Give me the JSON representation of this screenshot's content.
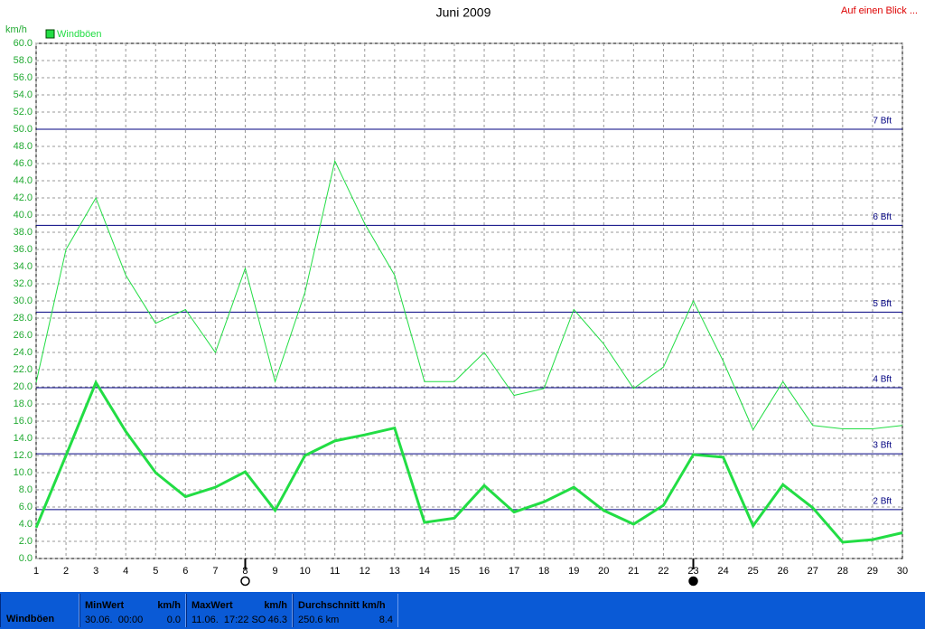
{
  "chart_data": {
    "type": "line",
    "title": "Juni 2009",
    "y_label": "km/h",
    "x": [
      1,
      2,
      3,
      4,
      5,
      6,
      7,
      8,
      9,
      10,
      11,
      12,
      13,
      14,
      15,
      16,
      17,
      18,
      19,
      20,
      21,
      22,
      23,
      24,
      25,
      26,
      27,
      28,
      29,
      30
    ],
    "xlim": [
      1,
      30
    ],
    "xticks": [
      1,
      2,
      3,
      4,
      5,
      6,
      7,
      8,
      9,
      10,
      11,
      12,
      13,
      14,
      15,
      16,
      17,
      18,
      19,
      20,
      21,
      22,
      23,
      24,
      25,
      26,
      27,
      28,
      29,
      30
    ],
    "ylim": [
      0,
      60
    ],
    "yticks": [
      {
        "value": 0,
        "label": "0.0"
      },
      {
        "value": 2,
        "label": "2.0"
      },
      {
        "value": 4,
        "label": "4.0"
      },
      {
        "value": 6,
        "label": "6.0"
      },
      {
        "value": 8,
        "label": "8.0"
      },
      {
        "value": 10,
        "label": "10.0"
      },
      {
        "value": 12,
        "label": "12.0"
      },
      {
        "value": 14,
        "label": "14.0"
      },
      {
        "value": 16,
        "label": "16.0"
      },
      {
        "value": 18,
        "label": "18.0"
      },
      {
        "value": 20,
        "label": "20.0"
      },
      {
        "value": 22,
        "label": "22.0"
      },
      {
        "value": 24,
        "label": "24.0"
      },
      {
        "value": 26,
        "label": "26.0"
      },
      {
        "value": 28,
        "label": "28.0"
      },
      {
        "value": 30,
        "label": "30.0"
      },
      {
        "value": 32,
        "label": "32.0"
      },
      {
        "value": 34,
        "label": "34.0"
      },
      {
        "value": 36,
        "label": "36.0"
      },
      {
        "value": 38,
        "label": "38.0"
      },
      {
        "value": 40,
        "label": "40.0"
      },
      {
        "value": 42,
        "label": "42.0"
      },
      {
        "value": 44,
        "label": "44.0"
      },
      {
        "value": 46,
        "label": "46.0"
      },
      {
        "value": 48,
        "label": "48.0"
      },
      {
        "value": 50,
        "label": "50.0"
      },
      {
        "value": 52,
        "label": "52.0"
      },
      {
        "value": 54,
        "label": "54.0"
      },
      {
        "value": 56,
        "label": "56.0"
      },
      {
        "value": 58,
        "label": "58.0"
      },
      {
        "value": 60,
        "label": "60.0"
      }
    ],
    "grid": true,
    "series": [
      {
        "name": "Windböen",
        "color": "#22dd44",
        "width": 1,
        "values": [
          20.5,
          36,
          42,
          33,
          27.4,
          29,
          24,
          33.8,
          20.6,
          31,
          46.3,
          39,
          33,
          20.6,
          20.6,
          24,
          19,
          19.8,
          29,
          25,
          19.8,
          22.3,
          30,
          23,
          15,
          20.6,
          15.5,
          15.1,
          15.1,
          15.5
        ]
      },
      {
        "color": "#22dd44",
        "width": 3,
        "values": [
          3.6,
          12,
          20.5,
          14.8,
          10,
          7.2,
          8.3,
          10.1,
          5.6,
          12,
          13.7,
          14.4,
          15.2,
          4.2,
          4.7,
          8.5,
          5.4,
          6.6,
          8.3,
          5.6,
          4,
          6.2,
          12.1,
          11.8,
          3.8,
          8.6,
          5.9,
          1.9,
          2.2,
          3
        ]
      }
    ],
    "reference_lines": [
      {
        "label": "7 Bft",
        "value": 50,
        "color": "#000080"
      },
      {
        "label": "6 Bft",
        "value": 38.8,
        "color": "#000080"
      },
      {
        "label": "5 Bft",
        "value": 28.7,
        "color": "#000080"
      },
      {
        "label": "4 Bft",
        "value": 19.9,
        "color": "#000080"
      },
      {
        "label": "3 Bft",
        "value": 12.2,
        "color": "#000080"
      },
      {
        "label": "2 Bft",
        "value": 5.7,
        "color": "#000080"
      }
    ],
    "markers": [
      {
        "x": 8,
        "style": "open"
      },
      {
        "x": 23,
        "style": "filled"
      }
    ]
  },
  "link": "Auf einen Blick ...",
  "footer": {
    "label": "Windböen",
    "cells": [
      {
        "title": "MinWert",
        "unit": "km/h",
        "when": "30.06.  00:00",
        "value": "0.0"
      },
      {
        "title": "MaxWert",
        "unit": "km/h",
        "when": "11.06.  17:22 SO",
        "value": "46.3"
      },
      {
        "title": "Durchschnitt km/h",
        "when": "250.6 km",
        "value": "8.4"
      }
    ]
  }
}
